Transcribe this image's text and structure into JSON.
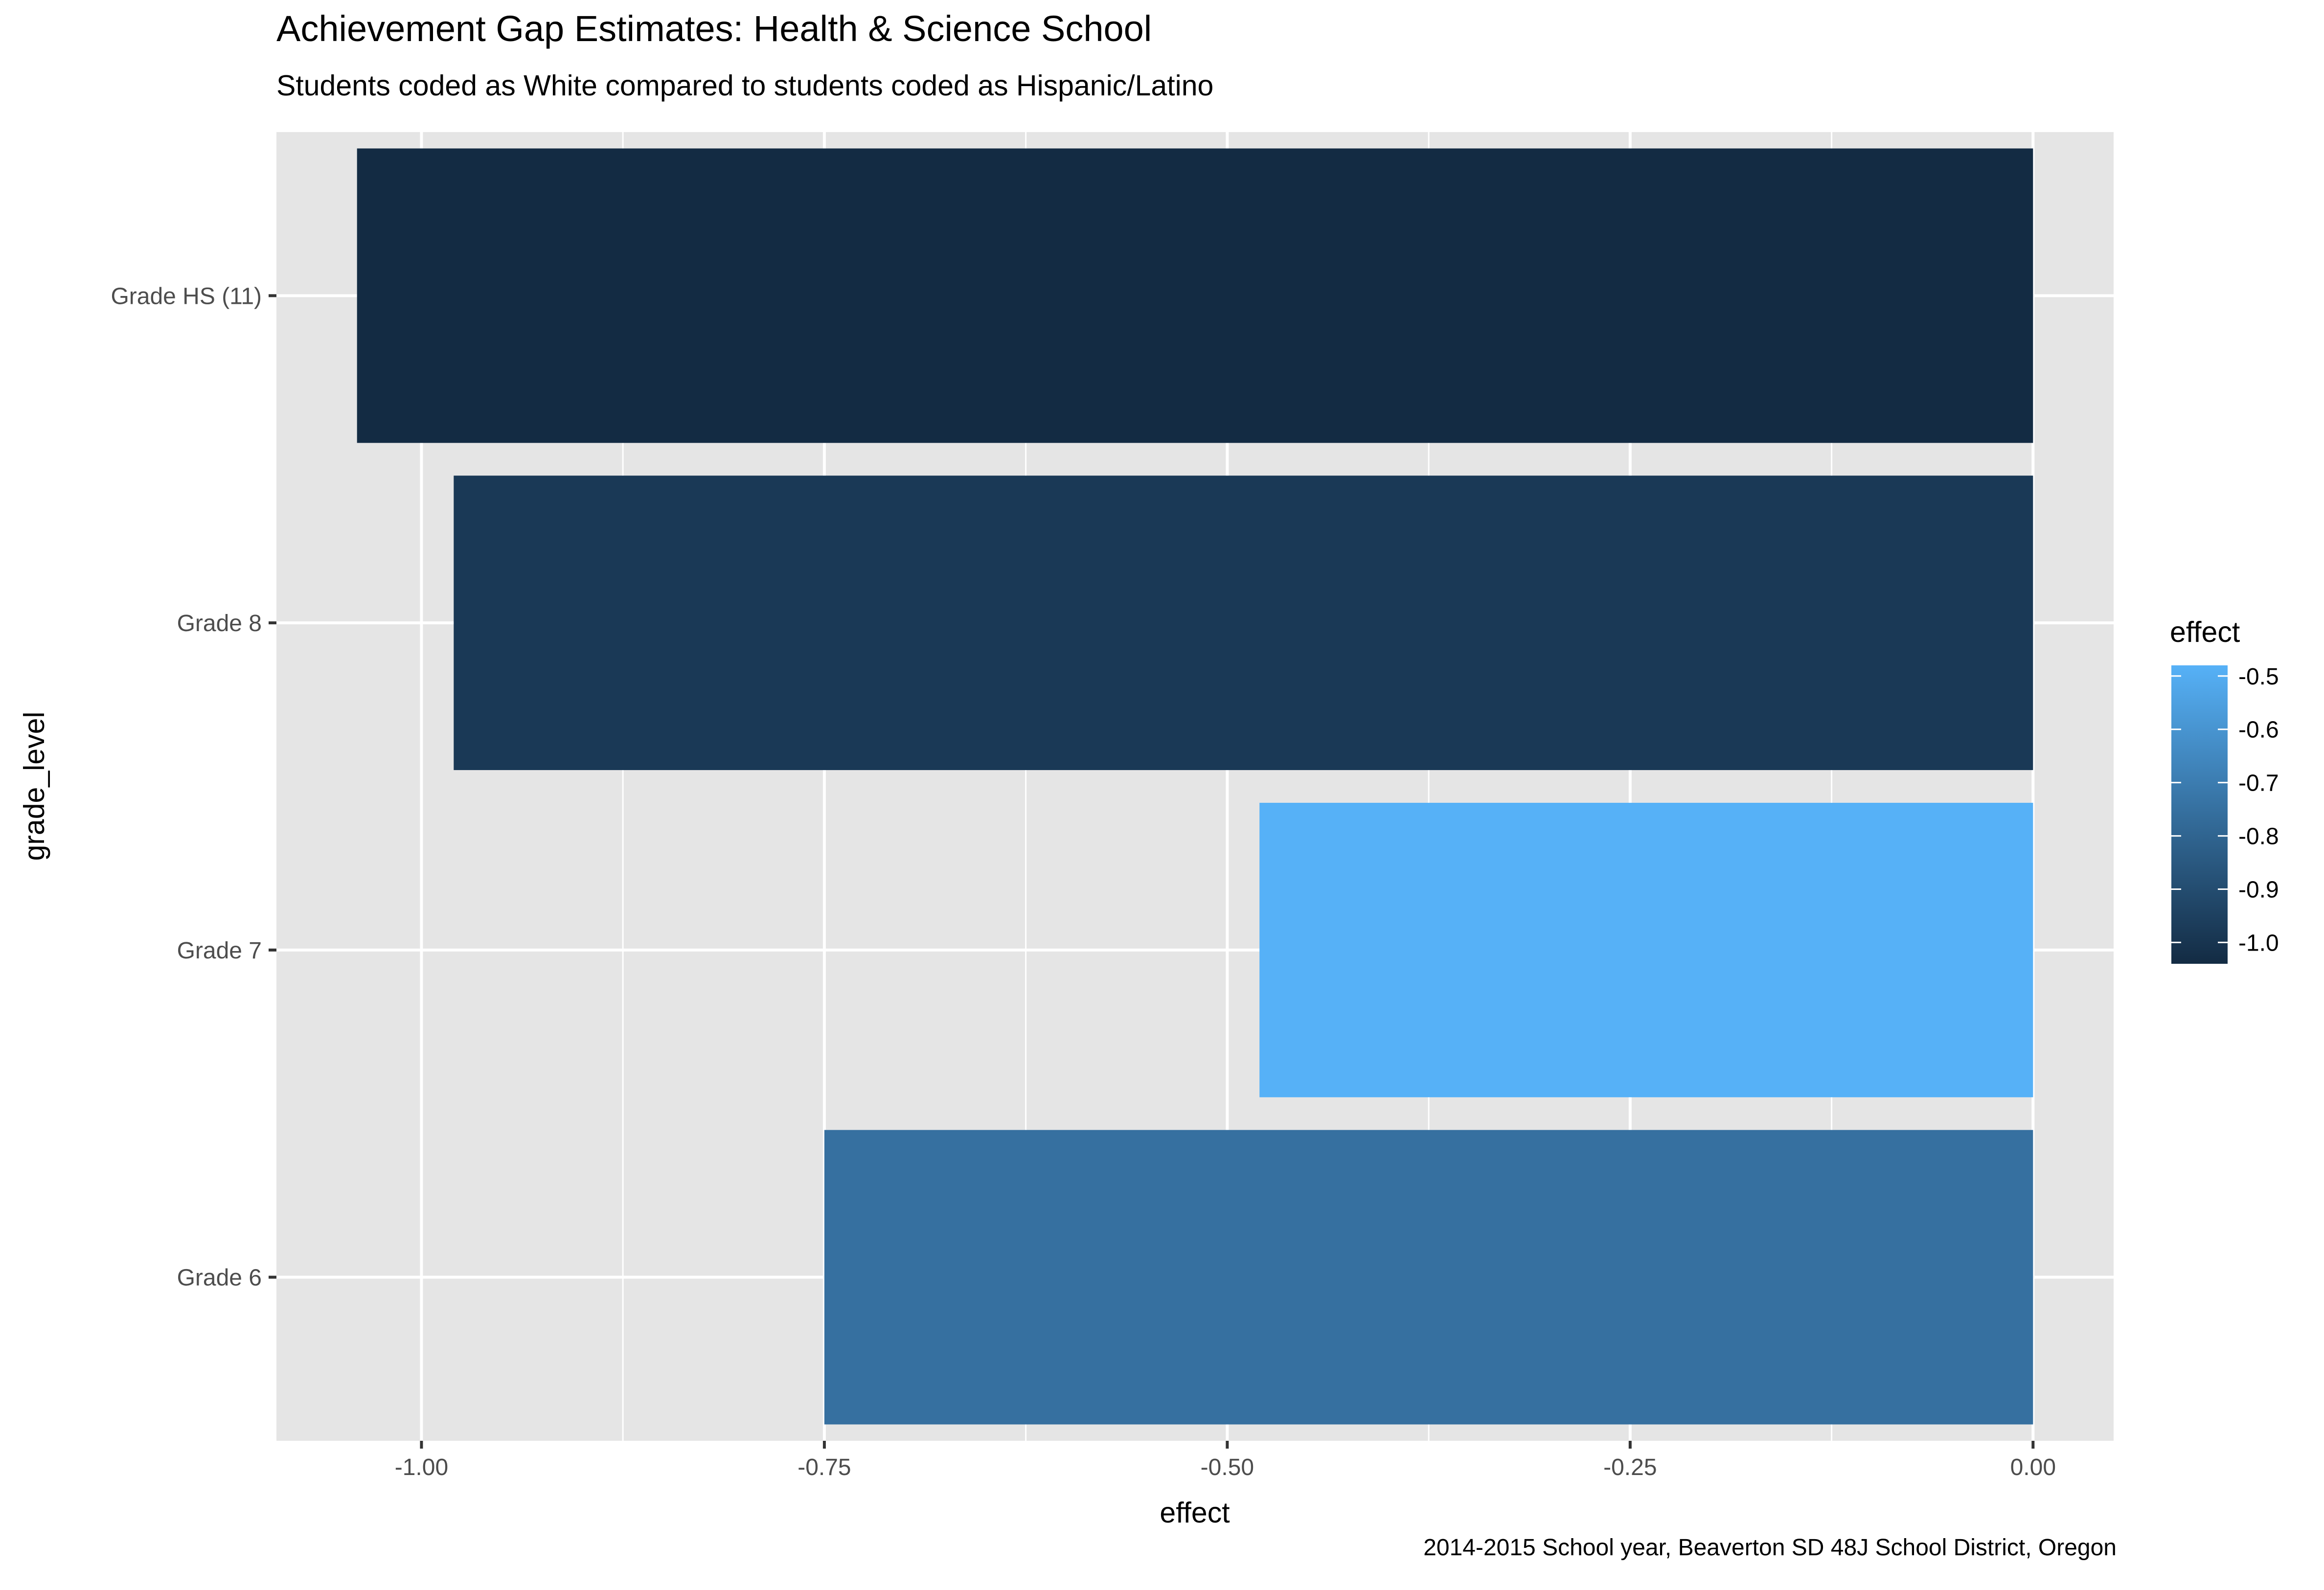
{
  "chart_data": {
    "type": "bar",
    "orientation": "horizontal",
    "title": "Achievement Gap Estimates: Health & Science School",
    "subtitle": "Students coded as White compared to students coded as Hispanic/Latino",
    "caption": "2014-2015 School year, Beaverton SD 48J School District, Oregon",
    "xlabel": "effect",
    "ylabel": "grade_level",
    "categories": [
      "Grade 6",
      "Grade 7",
      "Grade 8",
      "Grade HS (11)"
    ],
    "values": [
      -0.75,
      -0.48,
      -0.98,
      -1.04
    ],
    "xlim": [
      -1.09,
      0.05
    ],
    "x_ticks": [
      -1.0,
      -0.75,
      -0.5,
      -0.25,
      0.0
    ],
    "x_tick_labels": [
      "-1.00",
      "-0.75",
      "-0.50",
      "-0.25",
      "0.00"
    ],
    "grid": true,
    "fill_scale": {
      "title": "effect",
      "low_color": "#132B43",
      "high_color": "#56B1F7",
      "limits": [
        -1.04,
        -0.48
      ],
      "ticks": [
        -0.5,
        -0.6,
        -0.7,
        -0.8,
        -0.9,
        -1.0
      ],
      "tick_labels": [
        "-0.5",
        "-0.6",
        "-0.7",
        "-0.8",
        "-0.9",
        "-1.0"
      ]
    },
    "legend_position": "right",
    "panel_color": "#E5E5E5",
    "grid_color": "#FFFFFF"
  }
}
